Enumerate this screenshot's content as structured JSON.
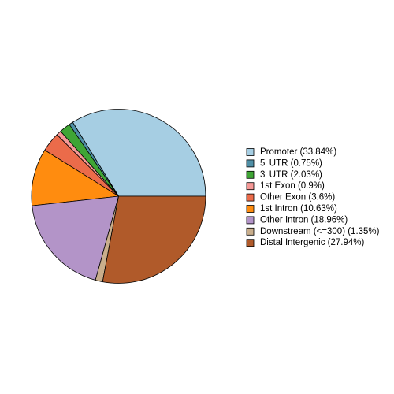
{
  "chart_data": {
    "type": "pie",
    "categories": [
      "Promoter (33.84%)",
      "5' UTR (0.75%)",
      "3' UTR (2.03%)",
      "1st Exon (0.9%)",
      "Other Exon (3.6%)",
      "1st Intron (10.63%)",
      "Other Intron (18.96%)",
      "Downstream (<=300) (1.35%)",
      "Distal Intergenic (27.94%)"
    ],
    "values": [
      33.84,
      0.75,
      2.03,
      0.9,
      3.6,
      10.63,
      18.96,
      1.35,
      27.94
    ],
    "colors": [
      "#A6CEE3",
      "#4F8FA6",
      "#3FA535",
      "#F59896",
      "#EB6B4A",
      "#FF8C0F",
      "#B394C8",
      "#C9AE8C",
      "#B05A2A"
    ],
    "legend": "right"
  }
}
